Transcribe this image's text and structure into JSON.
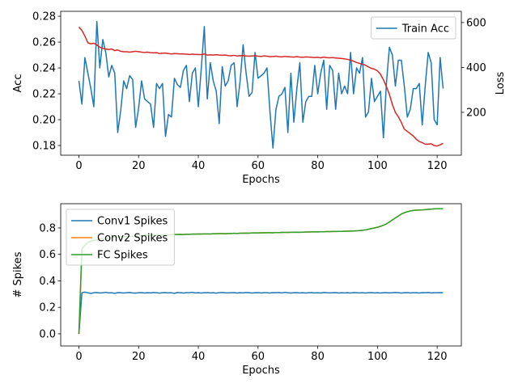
{
  "chart_data": [
    {
      "type": "line",
      "xlabel": "Epochs",
      "ylabel": "Acc",
      "y2label": "Loss",
      "legend": "upper right",
      "x": [
        0,
        1,
        2,
        3,
        4,
        5,
        6,
        7,
        8,
        9,
        10,
        11,
        12,
        13,
        14,
        15,
        16,
        17,
        18,
        19,
        20,
        21,
        22,
        23,
        24,
        25,
        26,
        27,
        28,
        29,
        30,
        31,
        32,
        33,
        34,
        35,
        36,
        37,
        38,
        39,
        40,
        41,
        42,
        43,
        44,
        45,
        46,
        47,
        48,
        49,
        50,
        51,
        52,
        53,
        54,
        55,
        56,
        57,
        58,
        59,
        60,
        61,
        62,
        63,
        64,
        65,
        66,
        67,
        68,
        69,
        70,
        71,
        72,
        73,
        74,
        75,
        76,
        77,
        78,
        79,
        80,
        81,
        82,
        83,
        84,
        85,
        86,
        87,
        88,
        89,
        90,
        91,
        92,
        93,
        94,
        95,
        96,
        97,
        98,
        99,
        100,
        101,
        102,
        103,
        104,
        105,
        106,
        107,
        108,
        109,
        110,
        111,
        112,
        113,
        114,
        115,
        116,
        117,
        118,
        119,
        120,
        121,
        122
      ],
      "xlim": [
        -6.1,
        128.1
      ],
      "xticks": [
        0,
        20,
        40,
        60,
        80,
        100,
        120
      ],
      "ylim": [
        0.1725,
        0.2838
      ],
      "yticks": [
        0.18,
        {
          "value": 0.2,
          "label": "0.20"
        },
        0.22,
        0.24,
        0.26,
        0.28
      ],
      "y2lim": [
        9,
        650
      ],
      "y2ticks": [
        200,
        400,
        600
      ],
      "series": [
        {
          "name": "Train Acc",
          "color": "#1f77b4",
          "values": [
            0.23,
            0.212,
            0.248,
            0.236,
            0.224,
            0.21,
            0.276,
            0.24,
            0.262,
            0.252,
            0.233,
            0.242,
            0.236,
            0.19,
            0.207,
            0.23,
            0.224,
            0.234,
            0.231,
            0.194,
            0.209,
            0.23,
            0.216,
            0.214,
            0.212,
            0.194,
            0.228,
            0.224,
            0.228,
            0.187,
            0.204,
            0.202,
            0.232,
            0.227,
            0.225,
            0.238,
            0.242,
            0.214,
            0.236,
            0.24,
            0.21,
            0.24,
            0.272,
            0.216,
            0.244,
            0.23,
            0.222,
            0.197,
            0.241,
            0.226,
            0.23,
            0.242,
            0.244,
            0.21,
            0.23,
            0.258,
            0.236,
            0.218,
            0.221,
            0.252,
            0.232,
            0.234,
            0.236,
            0.24,
            0.206,
            0.178,
            0.208,
            0.218,
            0.22,
            0.225,
            0.19,
            0.236,
            0.198,
            0.224,
            0.244,
            0.198,
            0.214,
            0.218,
            0.218,
            0.242,
            0.22,
            0.236,
            0.246,
            0.208,
            0.242,
            0.238,
            0.208,
            0.236,
            0.22,
            0.226,
            0.22,
            0.252,
            0.22,
            0.24,
            0.236,
            0.248,
            0.202,
            0.206,
            0.232,
            0.214,
            0.218,
            0.222,
            0.186,
            0.228,
            0.256,
            0.25,
            0.226,
            0.246,
            0.246,
            0.226,
            0.202,
            0.208,
            0.224,
            0.224,
            0.228,
            0.196,
            0.226,
            0.252,
            0.244,
            0.2,
            0.196,
            0.248,
            0.224
          ]
        },
        {
          "color": "#d62728",
          "axis": "y2",
          "values": [
            580,
            565,
            540,
            510,
            505,
            508,
            500,
            490,
            485,
            482,
            480,
            482,
            475,
            478,
            472,
            470,
            470,
            468,
            470,
            472,
            470,
            468,
            467,
            468,
            466,
            465,
            466,
            462,
            463,
            464,
            462,
            460,
            462,
            461,
            460,
            460,
            459,
            458,
            459,
            458,
            458,
            457,
            460,
            455,
            456,
            455,
            457,
            455,
            454,
            455,
            453,
            452,
            454,
            451,
            452,
            453,
            451,
            450,
            451,
            452,
            450,
            449,
            451,
            450,
            448,
            449,
            450,
            448,
            447,
            449,
            448,
            447,
            446,
            448,
            446,
            445,
            447,
            446,
            445,
            444,
            445,
            443,
            446,
            444,
            443,
            444,
            442,
            441,
            440,
            438,
            436,
            432,
            428,
            422,
            418,
            414,
            410,
            402,
            396,
            392,
            385,
            370,
            345,
            315,
            280,
            235,
            200,
            180,
            155,
            125,
            115,
            105,
            95,
            80,
            70,
            65,
            58,
            58,
            60,
            52,
            50,
            55,
            62
          ]
        }
      ]
    },
    {
      "type": "line",
      "xlabel": "Epochs",
      "ylabel": "# Spikes",
      "legend": "upper left",
      "x": [
        0,
        1,
        2,
        3,
        4,
        5,
        6,
        7,
        8,
        9,
        10,
        11,
        12,
        13,
        14,
        15,
        16,
        17,
        18,
        19,
        20,
        21,
        22,
        23,
        24,
        25,
        26,
        27,
        28,
        29,
        30,
        31,
        32,
        33,
        34,
        35,
        36,
        37,
        38,
        39,
        40,
        41,
        42,
        43,
        44,
        45,
        46,
        47,
        48,
        49,
        50,
        51,
        52,
        53,
        54,
        55,
        56,
        57,
        58,
        59,
        60,
        61,
        62,
        63,
        64,
        65,
        66,
        67,
        68,
        69,
        70,
        71,
        72,
        73,
        74,
        75,
        76,
        77,
        78,
        79,
        80,
        81,
        82,
        83,
        84,
        85,
        86,
        87,
        88,
        89,
        90,
        91,
        92,
        93,
        94,
        95,
        96,
        97,
        98,
        99,
        100,
        101,
        102,
        103,
        104,
        105,
        106,
        107,
        108,
        109,
        110,
        111,
        112,
        113,
        114,
        115,
        116,
        117,
        118,
        119,
        120,
        121,
        122
      ],
      "xlim": [
        -6.1,
        128.1
      ],
      "xticks": [
        0,
        20,
        40,
        60,
        80,
        100,
        120
      ],
      "ylim": [
        -0.092,
        0.983
      ],
      "yticks": [
        {
          "value": 0,
          "label": "0.0"
        },
        0.2,
        0.4,
        0.6,
        0.8
      ],
      "series": [
        {
          "name": "Conv1 Spikes",
          "color": "#1f77b4",
          "values": [
            0.0,
            0.31,
            0.315,
            0.31,
            0.305,
            0.31,
            0.312,
            0.308,
            0.31,
            0.313,
            0.309,
            0.31,
            0.306,
            0.311,
            0.31,
            0.308,
            0.31,
            0.312,
            0.309,
            0.307,
            0.31,
            0.311,
            0.308,
            0.31,
            0.309,
            0.312,
            0.31,
            0.307,
            0.31,
            0.311,
            0.309,
            0.31,
            0.306,
            0.312,
            0.31,
            0.308,
            0.31,
            0.311,
            0.313,
            0.309,
            0.31,
            0.308,
            0.31,
            0.311,
            0.309,
            0.31,
            0.307,
            0.31,
            0.312,
            0.31,
            0.309,
            0.31,
            0.311,
            0.308,
            0.31,
            0.309,
            0.312,
            0.31,
            0.308,
            0.31,
            0.311,
            0.309,
            0.31,
            0.31,
            0.308,
            0.311,
            0.31,
            0.312,
            0.309,
            0.313,
            0.31,
            0.308,
            0.31,
            0.311,
            0.309,
            0.31,
            0.308,
            0.31,
            0.311,
            0.309,
            0.31,
            0.308,
            0.312,
            0.31,
            0.309,
            0.31,
            0.311,
            0.308,
            0.31,
            0.309,
            0.31,
            0.308,
            0.311,
            0.31,
            0.309,
            0.31,
            0.308,
            0.31,
            0.311,
            0.309,
            0.31,
            0.308,
            0.31,
            0.311,
            0.309,
            0.31,
            0.312,
            0.31,
            0.308,
            0.31,
            0.311,
            0.309,
            0.31,
            0.31,
            0.308,
            0.311,
            0.31,
            0.312,
            0.309,
            0.31,
            0.31,
            0.311,
            0.31
          ]
        },
        {
          "name": "Conv2 Spikes",
          "color": "#ff7f0e",
          "values": [
            0.0,
            0.64,
            0.67,
            0.69,
            0.7,
            0.705,
            0.71,
            0.715,
            0.72,
            0.72,
            0.725,
            0.725,
            0.73,
            0.73,
            0.733,
            0.735,
            0.735,
            0.737,
            0.738,
            0.74,
            0.74,
            0.742,
            0.743,
            0.744,
            0.745,
            0.745,
            0.746,
            0.747,
            0.747,
            0.748,
            0.748,
            0.749,
            0.75,
            0.75,
            0.751,
            0.75,
            0.752,
            0.752,
            0.753,
            0.753,
            0.754,
            0.754,
            0.755,
            0.755,
            0.754,
            0.756,
            0.756,
            0.757,
            0.757,
            0.756,
            0.758,
            0.758,
            0.759,
            0.758,
            0.76,
            0.76,
            0.761,
            0.76,
            0.762,
            0.762,
            0.762,
            0.763,
            0.763,
            0.764,
            0.764,
            0.763,
            0.765,
            0.765,
            0.766,
            0.766,
            0.766,
            0.767,
            0.767,
            0.768,
            0.767,
            0.768,
            0.769,
            0.769,
            0.77,
            0.77,
            0.77,
            0.771,
            0.771,
            0.772,
            0.772,
            0.773,
            0.773,
            0.774,
            0.774,
            0.775,
            0.775,
            0.776,
            0.777,
            0.778,
            0.78,
            0.782,
            0.785,
            0.79,
            0.795,
            0.8,
            0.805,
            0.812,
            0.82,
            0.83,
            0.845,
            0.86,
            0.875,
            0.89,
            0.905,
            0.915,
            0.922,
            0.928,
            0.932,
            0.934,
            0.935,
            0.936,
            0.938,
            0.94,
            0.942,
            0.944,
            0.945,
            0.945,
            0.945
          ]
        },
        {
          "name": "FC Spikes",
          "color": "#2ca02c",
          "values": [
            0.0,
            0.64,
            0.67,
            0.69,
            0.7,
            0.705,
            0.71,
            0.715,
            0.72,
            0.72,
            0.725,
            0.725,
            0.73,
            0.73,
            0.733,
            0.735,
            0.735,
            0.737,
            0.738,
            0.74,
            0.74,
            0.742,
            0.743,
            0.744,
            0.745,
            0.745,
            0.746,
            0.747,
            0.747,
            0.748,
            0.748,
            0.749,
            0.75,
            0.75,
            0.751,
            0.75,
            0.752,
            0.752,
            0.753,
            0.753,
            0.754,
            0.754,
            0.755,
            0.755,
            0.754,
            0.756,
            0.756,
            0.757,
            0.757,
            0.756,
            0.758,
            0.758,
            0.759,
            0.758,
            0.76,
            0.76,
            0.761,
            0.76,
            0.762,
            0.762,
            0.762,
            0.763,
            0.763,
            0.764,
            0.764,
            0.763,
            0.765,
            0.765,
            0.766,
            0.766,
            0.766,
            0.767,
            0.767,
            0.768,
            0.767,
            0.768,
            0.769,
            0.769,
            0.77,
            0.77,
            0.77,
            0.771,
            0.771,
            0.772,
            0.772,
            0.773,
            0.773,
            0.774,
            0.774,
            0.775,
            0.775,
            0.776,
            0.777,
            0.778,
            0.78,
            0.782,
            0.785,
            0.79,
            0.795,
            0.8,
            0.805,
            0.812,
            0.82,
            0.83,
            0.845,
            0.86,
            0.875,
            0.89,
            0.905,
            0.915,
            0.922,
            0.928,
            0.932,
            0.934,
            0.935,
            0.936,
            0.938,
            0.94,
            0.942,
            0.944,
            0.945,
            0.945,
            0.945
          ]
        }
      ]
    }
  ]
}
